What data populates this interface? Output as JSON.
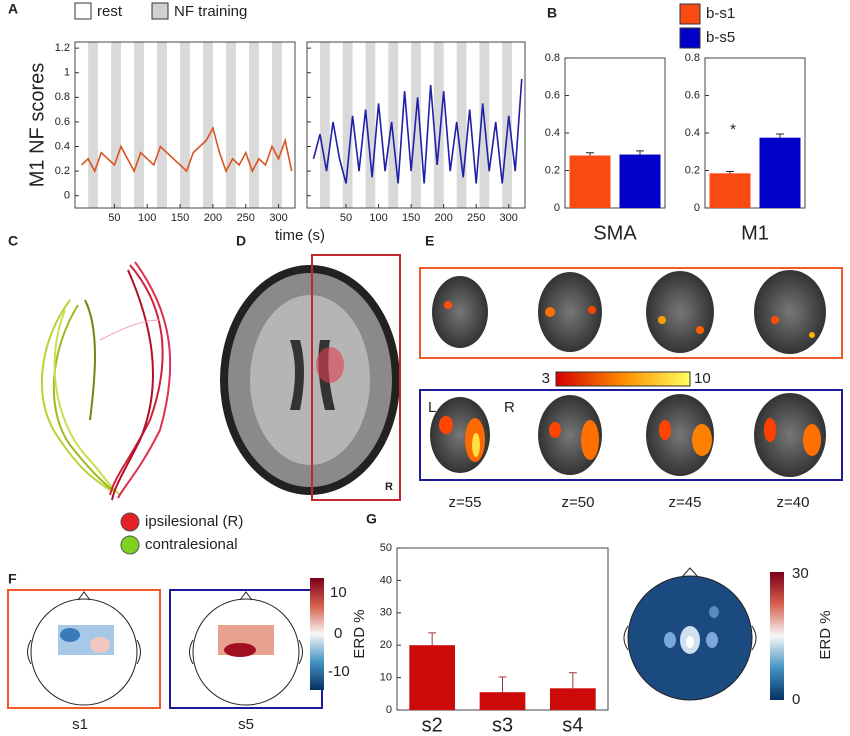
{
  "chart_data": [
    {
      "type": "line",
      "legend": [
        "rest",
        "NF training"
      ],
      "ylabel": "M1 NF scores",
      "xlabel": "time (s)",
      "x": [
        0,
        10,
        20,
        30,
        40,
        50,
        60,
        70,
        80,
        90,
        100,
        110,
        120,
        130,
        140,
        150,
        160,
        170,
        180,
        190,
        200,
        210,
        220,
        230,
        240,
        250,
        260,
        270,
        280,
        290,
        300,
        310,
        320
      ],
      "series": [
        {
          "color": "#d9541e",
          "values": [
            0.25,
            0.3,
            0.2,
            0.35,
            0.3,
            0.25,
            0.4,
            0.3,
            0.2,
            0.35,
            0.3,
            0.25,
            0.4,
            0.35,
            0.3,
            0.25,
            0.2,
            0.35,
            0.4,
            0.45,
            0.55,
            0.35,
            0.2,
            0.3,
            0.25,
            0.35,
            0.2,
            0.3,
            0.25,
            0.4,
            0.3,
            0.45,
            0.2
          ]
        }
      ],
      "xlim": [
        -10,
        325
      ],
      "xticks": [
        50,
        100,
        150,
        200,
        250,
        300
      ],
      "ylim": [
        -0.1,
        1.25
      ],
      "yticks": [
        0,
        0.2,
        0.4,
        0.6,
        0.8,
        1,
        1.2
      ],
      "nf_blocks": [
        [
          10,
          25
        ],
        [
          45,
          60
        ],
        [
          80,
          95
        ],
        [
          115,
          130
        ],
        [
          150,
          165
        ],
        [
          185,
          200
        ],
        [
          220,
          235
        ],
        [
          255,
          270
        ],
        [
          290,
          305
        ]
      ]
    },
    {
      "type": "line",
      "x": [
        0,
        10,
        20,
        30,
        40,
        50,
        60,
        70,
        80,
        90,
        100,
        110,
        120,
        130,
        140,
        150,
        160,
        170,
        180,
        190,
        200,
        210,
        220,
        230,
        240,
        250,
        260,
        270,
        280,
        290,
        300,
        310,
        320
      ],
      "series": [
        {
          "color": "#1f1fa8",
          "values": [
            0.3,
            0.5,
            0.2,
            0.6,
            0.3,
            0.1,
            0.65,
            0.2,
            0.7,
            0.15,
            0.75,
            0.2,
            0.6,
            0.1,
            0.85,
            0.2,
            0.8,
            0.1,
            0.9,
            0.25,
            0.85,
            0.2,
            0.6,
            0.15,
            0.7,
            0.1,
            0.75,
            0.2,
            0.6,
            0.1,
            0.65,
            0.2,
            0.95
          ]
        }
      ],
      "xlim": [
        -10,
        325
      ],
      "xticks": [
        50,
        100,
        150,
        200,
        250,
        300
      ],
      "ylim": [
        -0.1,
        1.25
      ],
      "yticks": [
        0,
        0.2,
        0.4,
        0.6,
        0.8,
        1,
        1.2
      ],
      "nf_blocks": [
        [
          10,
          25
        ],
        [
          45,
          60
        ],
        [
          80,
          95
        ],
        [
          115,
          130
        ],
        [
          150,
          165
        ],
        [
          185,
          200
        ],
        [
          220,
          235
        ],
        [
          255,
          270
        ],
        [
          290,
          305
        ]
      ],
      "show_ytick_labels": false
    },
    {
      "type": "bar",
      "title": "SMA",
      "series": [
        {
          "name": "b-s1",
          "color": "#fa4a14",
          "values": [
            0.28
          ],
          "errors": [
            0.015
          ]
        },
        {
          "name": "b-s5",
          "color": "#0000c8",
          "values": [
            0.285
          ],
          "errors": [
            0.02
          ]
        }
      ],
      "ylim": [
        0,
        0.8
      ],
      "yticks": [
        0,
        0.2,
        0.4,
        0.6,
        0.8
      ]
    },
    {
      "type": "bar",
      "title": "M1",
      "annotation": "*",
      "series": [
        {
          "color": "#fa4a14",
          "values": [
            0.185
          ],
          "errors": [
            0.01
          ]
        },
        {
          "color": "#0000c8",
          "values": [
            0.375
          ],
          "errors": [
            0.02
          ]
        }
      ],
      "ylim": [
        0,
        0.8
      ],
      "yticks": [
        0,
        0.2,
        0.4,
        0.6,
        0.8
      ]
    },
    {
      "type": "bar",
      "categories": [
        "s2",
        "s3",
        "s4"
      ],
      "values": [
        20,
        5.5,
        6.7
      ],
      "errors": [
        3.8,
        4.7,
        4.8
      ],
      "color": "#cc0a0a",
      "ylim": [
        0,
        50
      ],
      "yticks": [
        0,
        10,
        20,
        30,
        40,
        50
      ]
    }
  ],
  "panel_labels": [
    "A",
    "B",
    "C",
    "D",
    "E",
    "F",
    "G"
  ],
  "tracts_legend": [
    "ipsilesional (R)",
    "contralesional"
  ],
  "brain_side": "R",
  "fmri": {
    "colorbar": [
      "3",
      "10"
    ],
    "sides": [
      "L",
      "R"
    ],
    "slices": [
      "z=55",
      "z=50",
      "z=45",
      "z=40"
    ]
  },
  "eeg_maps": {
    "labels": [
      "s1",
      "s5"
    ],
    "colorbar_ticks": [
      "10",
      "0",
      "-10"
    ],
    "colorbar_label": "ERD %"
  },
  "eeg_map_g": {
    "colorbar_ticks": [
      "30",
      "0"
    ],
    "colorbar_label": "ERD %"
  }
}
